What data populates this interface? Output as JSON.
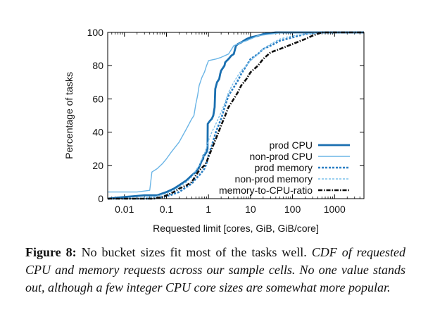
{
  "chart_data": {
    "type": "line",
    "title": "",
    "xlabel": "Requested limit [cores, GiB, GiB/core]",
    "ylabel": "Percentage of tasks",
    "x_scale": "log",
    "xlim": [
      0.004,
      5000
    ],
    "ylim": [
      0,
      100
    ],
    "x_ticks": [
      0.01,
      0.1,
      1,
      10,
      100,
      1000
    ],
    "x_tick_labels": [
      "0.01",
      "0.1",
      "1",
      "10",
      "100",
      "1000"
    ],
    "y_ticks": [
      0,
      20,
      40,
      60,
      80,
      100
    ],
    "y_tick_labels": [
      "0",
      "20",
      "40",
      "60",
      "80",
      "100"
    ],
    "grid": false,
    "legend_position": "bottom-right",
    "series": [
      {
        "name": "prod CPU",
        "color": "#1a6fb0",
        "style": "solid-thick",
        "points": [
          [
            0.004,
            0
          ],
          [
            0.01,
            1
          ],
          [
            0.03,
            2
          ],
          [
            0.06,
            2
          ],
          [
            0.1,
            4
          ],
          [
            0.15,
            6
          ],
          [
            0.2,
            8
          ],
          [
            0.3,
            11
          ],
          [
            0.4,
            14
          ],
          [
            0.5,
            16
          ],
          [
            0.6,
            19
          ],
          [
            0.7,
            23
          ],
          [
            0.75,
            24
          ],
          [
            0.76,
            26
          ],
          [
            0.8,
            26
          ],
          [
            0.9,
            28
          ],
          [
            0.95,
            30
          ],
          [
            0.96,
            45
          ],
          [
            1.1,
            47
          ],
          [
            1.2,
            48
          ],
          [
            1.3,
            50
          ],
          [
            1.4,
            55
          ],
          [
            1.45,
            66
          ],
          [
            1.6,
            70
          ],
          [
            1.8,
            72
          ],
          [
            1.9,
            75
          ],
          [
            2.0,
            77
          ],
          [
            2.4,
            80
          ],
          [
            2.5,
            82
          ],
          [
            3,
            84
          ],
          [
            3.5,
            86
          ],
          [
            4,
            87
          ],
          [
            4.5,
            92
          ],
          [
            5,
            93
          ],
          [
            6,
            94
          ],
          [
            8,
            96
          ],
          [
            10,
            97
          ],
          [
            15,
            98
          ],
          [
            20,
            99
          ],
          [
            40,
            100
          ],
          [
            5000,
            100
          ]
        ]
      },
      {
        "name": "non-prod CPU",
        "color": "#6bb5e6",
        "style": "solid-thin",
        "points": [
          [
            0.004,
            4
          ],
          [
            0.01,
            4
          ],
          [
            0.02,
            4
          ],
          [
            0.04,
            5
          ],
          [
            0.045,
            16
          ],
          [
            0.06,
            18
          ],
          [
            0.08,
            21
          ],
          [
            0.1,
            24
          ],
          [
            0.13,
            28
          ],
          [
            0.2,
            34
          ],
          [
            0.3,
            42
          ],
          [
            0.4,
            48
          ],
          [
            0.45,
            50
          ],
          [
            0.5,
            57
          ],
          [
            0.55,
            62
          ],
          [
            0.6,
            68
          ],
          [
            0.7,
            73
          ],
          [
            0.8,
            76
          ],
          [
            0.9,
            80
          ],
          [
            1.0,
            83
          ],
          [
            1.5,
            84
          ],
          [
            2.0,
            85
          ],
          [
            3,
            87
          ],
          [
            4,
            92
          ],
          [
            5,
            93
          ],
          [
            6,
            94
          ],
          [
            8,
            95
          ],
          [
            10,
            96
          ],
          [
            15,
            98
          ],
          [
            30,
            99
          ],
          [
            60,
            100
          ],
          [
            5000,
            100
          ]
        ]
      },
      {
        "name": "prod memory",
        "color": "#2a7fc4",
        "style": "dashed",
        "points": [
          [
            0.004,
            0
          ],
          [
            0.05,
            0
          ],
          [
            0.08,
            1
          ],
          [
            0.12,
            2
          ],
          [
            0.2,
            4
          ],
          [
            0.3,
            7
          ],
          [
            0.4,
            9
          ],
          [
            0.5,
            12
          ],
          [
            0.6,
            14
          ],
          [
            0.7,
            16
          ],
          [
            0.8,
            18
          ],
          [
            0.9,
            21
          ],
          [
            1,
            26
          ],
          [
            1.2,
            32
          ],
          [
            1.5,
            40
          ],
          [
            2,
            48
          ],
          [
            2.5,
            56
          ],
          [
            3,
            62
          ],
          [
            4,
            67
          ],
          [
            5,
            71
          ],
          [
            6,
            75
          ],
          [
            8,
            80
          ],
          [
            10,
            84
          ],
          [
            15,
            87
          ],
          [
            20,
            90
          ],
          [
            30,
            92
          ],
          [
            50,
            95
          ],
          [
            100,
            97
          ],
          [
            200,
            99
          ],
          [
            500,
            100
          ],
          [
            5000,
            100
          ]
        ]
      },
      {
        "name": "non-prod memory",
        "color": "#7cc0ec",
        "style": "dashed-thin",
        "points": [
          [
            0.004,
            0
          ],
          [
            0.02,
            0
          ],
          [
            0.05,
            1
          ],
          [
            0.1,
            3
          ],
          [
            0.15,
            5
          ],
          [
            0.2,
            7
          ],
          [
            0.3,
            10
          ],
          [
            0.4,
            13
          ],
          [
            0.5,
            17
          ],
          [
            0.6,
            20
          ],
          [
            0.7,
            24
          ],
          [
            0.8,
            27
          ],
          [
            0.9,
            31
          ],
          [
            1,
            35
          ],
          [
            1.2,
            40
          ],
          [
            1.5,
            45
          ],
          [
            2,
            52
          ],
          [
            2.5,
            58
          ],
          [
            3,
            64
          ],
          [
            4,
            70
          ],
          [
            5,
            74
          ],
          [
            6,
            77
          ],
          [
            8,
            80
          ],
          [
            10,
            83
          ],
          [
            15,
            87
          ],
          [
            20,
            90
          ],
          [
            30,
            93
          ],
          [
            50,
            96
          ],
          [
            100,
            98
          ],
          [
            200,
            99
          ],
          [
            500,
            100
          ],
          [
            5000,
            100
          ]
        ]
      },
      {
        "name": "memory-to-CPU-ratio",
        "color": "#111111",
        "style": "dashdot",
        "points": [
          [
            0.004,
            0
          ],
          [
            0.05,
            0
          ],
          [
            0.08,
            1
          ],
          [
            0.1,
            2
          ],
          [
            0.15,
            4
          ],
          [
            0.2,
            6
          ],
          [
            0.3,
            8
          ],
          [
            0.4,
            10
          ],
          [
            0.5,
            14
          ],
          [
            0.6,
            17
          ],
          [
            0.8,
            20
          ],
          [
            0.9,
            22
          ],
          [
            1,
            25
          ],
          [
            1.2,
            30
          ],
          [
            1.5,
            36
          ],
          [
            2,
            44
          ],
          [
            2.5,
            50
          ],
          [
            3,
            55
          ],
          [
            4,
            60
          ],
          [
            5,
            64
          ],
          [
            6,
            68
          ],
          [
            8,
            72
          ],
          [
            10,
            76
          ],
          [
            15,
            80
          ],
          [
            20,
            84
          ],
          [
            30,
            88
          ],
          [
            50,
            90
          ],
          [
            100,
            93
          ],
          [
            200,
            96
          ],
          [
            300,
            98
          ],
          [
            500,
            100
          ],
          [
            5000,
            100
          ]
        ]
      }
    ]
  },
  "caption": {
    "label": "Figure 8:",
    "normal": " No bucket sizes fit most of the tasks well. ",
    "italic": "CDF of requested CPU and memory requests across our sample cells. No one value stands out, although a few integer CPU core sizes are somewhat more popular."
  }
}
